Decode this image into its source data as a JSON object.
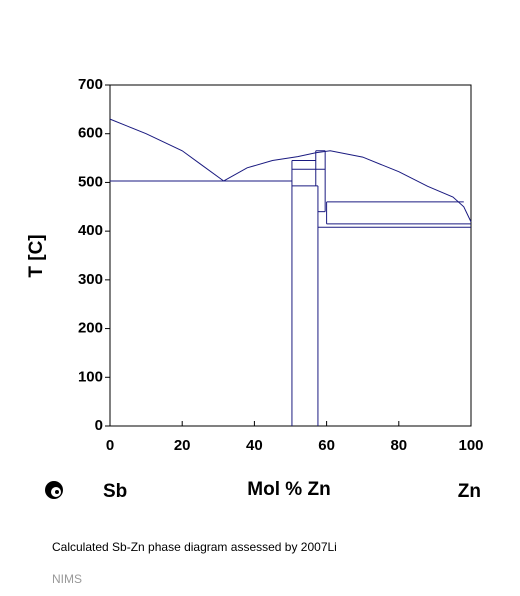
{
  "chart_data": {
    "type": "line",
    "ylabel": "T [C]",
    "xlabel": "Mol % Zn",
    "left_element": "Sb",
    "right_element": "Zn",
    "caption": "Calculated Sb-Zn phase diagram assessed by 2007Li",
    "source": "NIMS",
    "xlim": [
      0,
      100
    ],
    "ylim": [
      0,
      700
    ],
    "xticks": [
      0,
      20,
      40,
      60,
      80,
      100
    ],
    "yticks": [
      0,
      100,
      200,
      300,
      400,
      500,
      600,
      700
    ],
    "color": "#1a1a80",
    "series": [
      {
        "x": [
          0,
          10,
          20,
          25,
          31.5
        ],
        "values": [
          630,
          600,
          565,
          538,
          503
        ]
      },
      {
        "x": [
          31.5,
          38,
          45,
          52,
          57,
          61,
          70,
          80,
          88,
          95,
          98,
          100
        ],
        "values": [
          503,
          530,
          545,
          553,
          561,
          565,
          552,
          522,
          492,
          470,
          450,
          419
        ]
      },
      {
        "x": [
          0,
          50.4
        ],
        "values": [
          503,
          503
        ]
      },
      {
        "x": [
          50.4,
          50.4
        ],
        "values": [
          0,
          545
        ]
      },
      {
        "x": [
          57.6,
          57.6
        ],
        "values": [
          0,
          493
        ]
      },
      {
        "x": [
          50.4,
          57
        ],
        "values": [
          545,
          545
        ]
      },
      {
        "x": [
          50.4,
          59.6
        ],
        "values": [
          527,
          527
        ]
      },
      {
        "x": [
          50.4,
          57.6
        ],
        "values": [
          493,
          493
        ]
      },
      {
        "x": [
          57,
          57
        ],
        "values": [
          493,
          565
        ]
      },
      {
        "x": [
          59.6,
          59.6
        ],
        "values": [
          440,
          565
        ]
      },
      {
        "x": [
          57,
          59.6
        ],
        "values": [
          565,
          565
        ]
      },
      {
        "x": [
          57.6,
          59.6
        ],
        "values": [
          440,
          440
        ]
      },
      {
        "x": [
          60,
          98
        ],
        "values": [
          460,
          460
        ]
      },
      {
        "x": [
          60,
          60
        ],
        "values": [
          415,
          460
        ]
      },
      {
        "x": [
          60,
          100
        ],
        "values": [
          415,
          415
        ]
      },
      {
        "x": [
          57.6,
          100
        ],
        "values": [
          408,
          408
        ]
      }
    ]
  }
}
